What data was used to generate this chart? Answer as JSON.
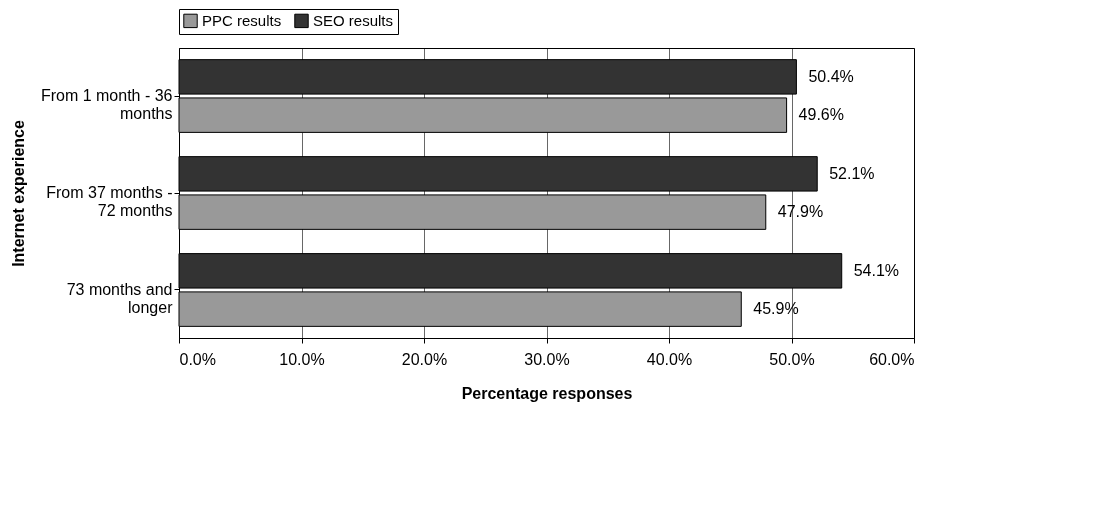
{
  "chart_data": {
    "type": "bar",
    "orientation": "horizontal",
    "xlabel": "Percentage responses",
    "ylabel": "Internet experience",
    "categories": [
      "From 1 month - 36 months",
      "From 37 months - 72 months",
      "73 months and longer"
    ],
    "series": [
      {
        "name": "PPC results",
        "color": "#999999",
        "values": [
          49.6,
          47.9,
          45.9
        ],
        "value_labels": [
          "49.6%",
          "47.9%",
          "45.9%"
        ]
      },
      {
        "name": "SEO results",
        "color": "#333333",
        "values": [
          50.4,
          52.1,
          54.1
        ],
        "value_labels": [
          "50.4%",
          "52.1%",
          "54.1%"
        ]
      }
    ],
    "xlim": [
      0,
      60
    ],
    "xticks": [
      {
        "value": 0,
        "label": "0.0%"
      },
      {
        "value": 10,
        "label": "10.0%"
      },
      {
        "value": 20,
        "label": "20.0%"
      },
      {
        "value": 30,
        "label": "30.0%"
      },
      {
        "value": 40,
        "label": "40.0%"
      },
      {
        "value": 50,
        "label": "50.0%"
      },
      {
        "value": 60,
        "label": "60.0%"
      }
    ],
    "grid": "x",
    "legend": "top"
  }
}
